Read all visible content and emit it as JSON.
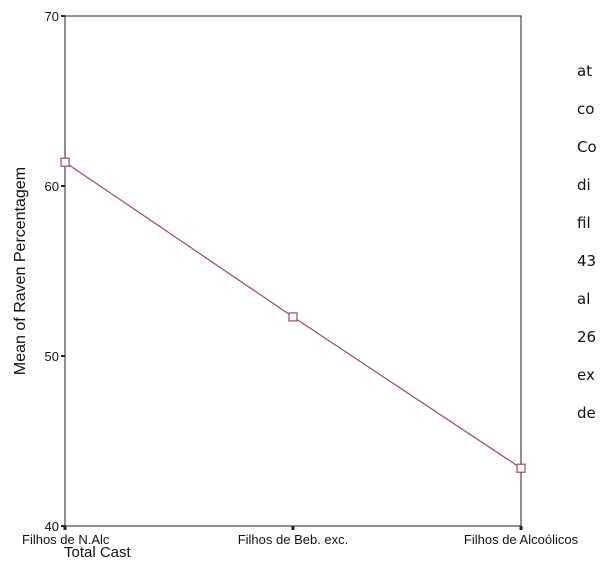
{
  "chart_data": {
    "type": "line",
    "ylabel": "Mean of Raven Percentagem",
    "xlabel": "Total Cast",
    "categories": [
      "Filhos de N.Alc",
      "Filhos de Beb. exc.",
      "Filhos de Alcoólicos"
    ],
    "series": [
      {
        "values": [
          61.4,
          52.3,
          43.4
        ]
      }
    ],
    "ylim": [
      40,
      70
    ],
    "yticks": [
      40,
      50,
      60,
      70
    ],
    "grid": false,
    "line_color": "#9e4a55",
    "marker": "square"
  },
  "side_text": [
    "at",
    "co",
    "Co",
    "di",
    "fil",
    "43",
    "al",
    "26",
    "ex",
    "de"
  ]
}
